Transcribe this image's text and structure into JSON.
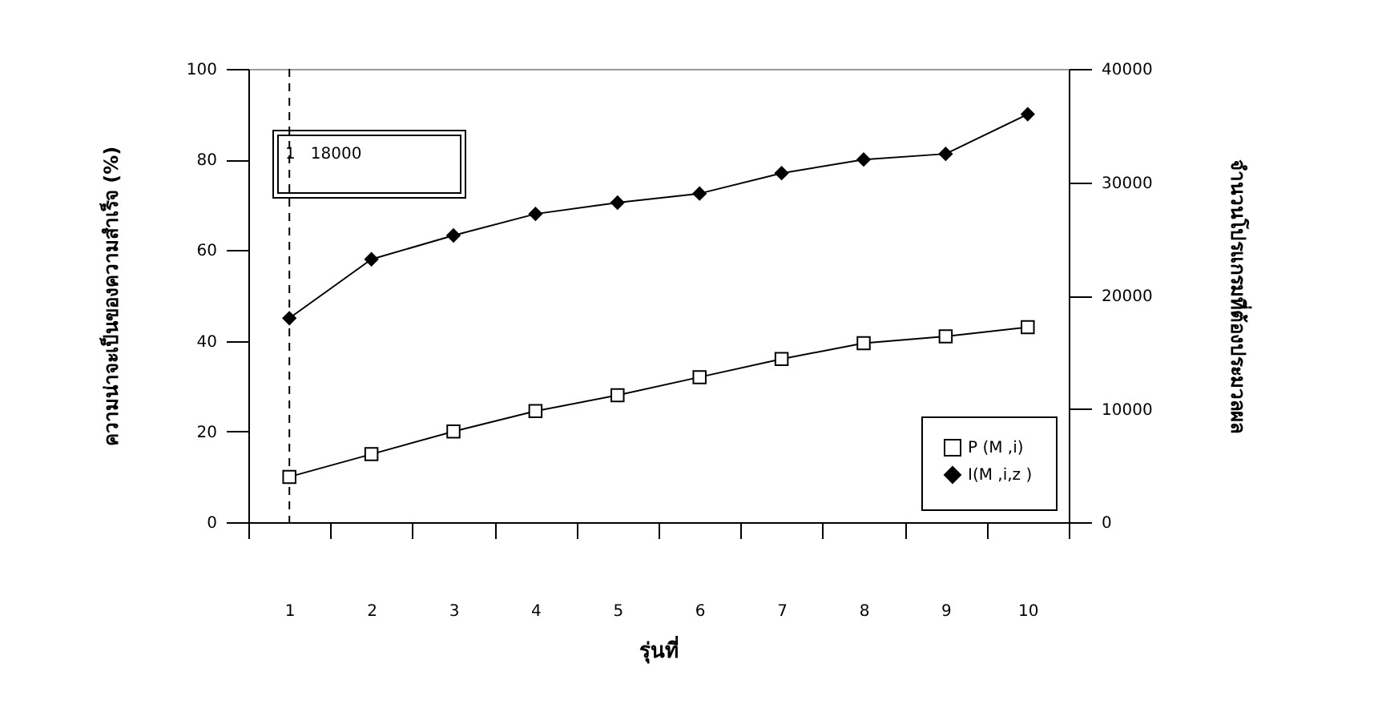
{
  "chart_data": {
    "type": "line",
    "xlabel": "รุ่นที่",
    "ylabel": "ความน่าจะเป็นของความสำเร็จ (%)",
    "y2label": "จำนวนโปรแกรมที่ต้องประมวลผล",
    "categories": [
      "1",
      "2",
      "3",
      "4",
      "5",
      "6",
      "7",
      "8",
      "9",
      "10"
    ],
    "series": [
      {
        "name": "P (M ,i)",
        "color": "#000000",
        "marker": "square",
        "values": [
          10,
          15,
          20,
          24.5,
          28,
          32,
          36,
          39.5,
          41,
          43
        ]
      },
      {
        "name": "I(M ,i,z )",
        "color": "#000000",
        "marker": "diamond",
        "axis": "y2",
        "values": [
          18000,
          23200,
          25300,
          27200,
          28200,
          29000,
          30800,
          32000,
          32500,
          36000
        ]
      }
    ],
    "ylim": [
      0,
      100
    ],
    "yticks": [
      0,
      20,
      40,
      60,
      80,
      100
    ],
    "y2lim": [
      0,
      40000
    ],
    "y2ticks": [
      0,
      10000,
      20000,
      30000,
      40000
    ],
    "ref_lines": [
      {
        "axis": "x",
        "value": "1",
        "line_style": "dashed"
      }
    ],
    "annotations": [
      "1   18000"
    ],
    "legend": "bottom right",
    "grid": false,
    "line_style": "solid"
  }
}
